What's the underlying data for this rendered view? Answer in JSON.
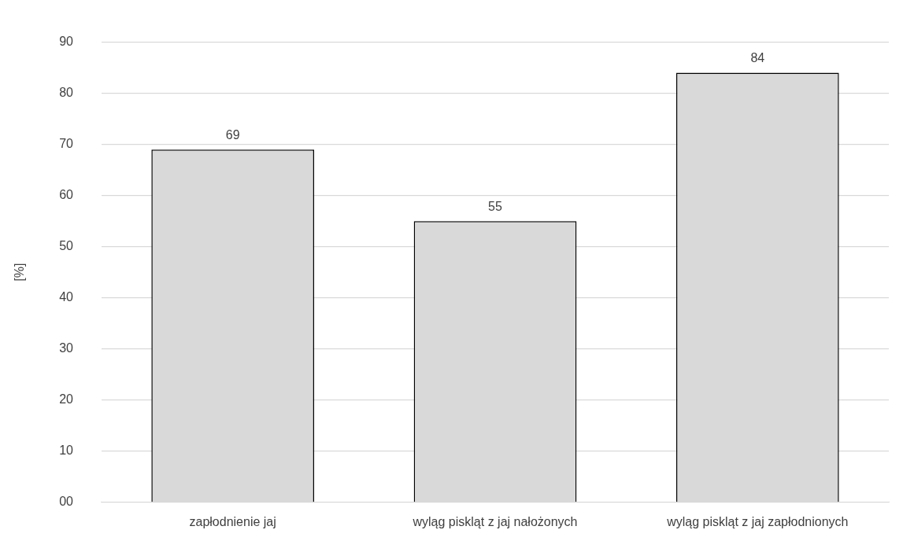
{
  "chart_data": {
    "type": "bar",
    "ylabel": "[%]",
    "categories": [
      "zapłodnienie jaj",
      "wyląg piskląt z jaj nałożonych",
      "wyląg piskląt z jaj zapłodnionych"
    ],
    "values": [
      69,
      55,
      84
    ],
    "color": "#d9d9d9",
    "ylim": [
      0,
      90
    ],
    "yticks": [
      {
        "value": 0,
        "label": "00"
      },
      10,
      20,
      30,
      40,
      50,
      60,
      70,
      80,
      90
    ],
    "grid": "y",
    "data_labels": true,
    "legend": false
  }
}
